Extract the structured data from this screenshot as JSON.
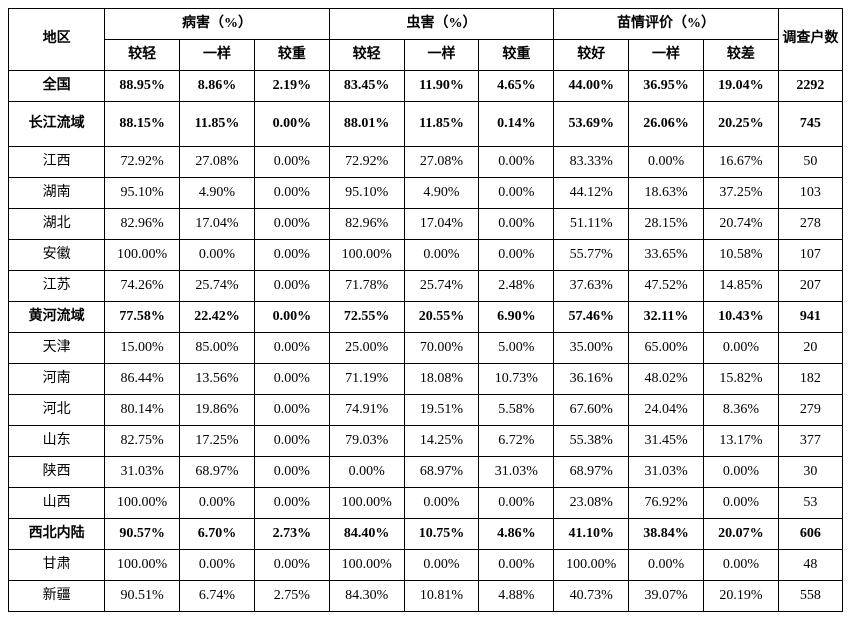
{
  "header": {
    "region": "地区",
    "group1": "病害（%）",
    "group2": "虫害（%）",
    "group3": "苗情评价（%）",
    "count": "调查户数",
    "sub": {
      "light": "较轻",
      "same": "一样",
      "heavy": "较重",
      "good": "较好",
      "bad": "较差"
    }
  },
  "rows": [
    {
      "bold": true,
      "tall": false,
      "region": "全国",
      "c": [
        "88.95%",
        "8.86%",
        "2.19%",
        "83.45%",
        "11.90%",
        "4.65%",
        "44.00%",
        "36.95%",
        "19.04%",
        "2292"
      ]
    },
    {
      "bold": true,
      "tall": true,
      "region": "长江流域",
      "c": [
        "88.15%",
        "11.85%",
        "0.00%",
        "88.01%",
        "11.85%",
        "0.14%",
        "53.69%",
        "26.06%",
        "20.25%",
        "745"
      ]
    },
    {
      "bold": false,
      "tall": false,
      "region": "江西",
      "c": [
        "72.92%",
        "27.08%",
        "0.00%",
        "72.92%",
        "27.08%",
        "0.00%",
        "83.33%",
        "0.00%",
        "16.67%",
        "50"
      ]
    },
    {
      "bold": false,
      "tall": false,
      "region": "湖南",
      "c": [
        "95.10%",
        "4.90%",
        "0.00%",
        "95.10%",
        "4.90%",
        "0.00%",
        "44.12%",
        "18.63%",
        "37.25%",
        "103"
      ]
    },
    {
      "bold": false,
      "tall": false,
      "region": "湖北",
      "c": [
        "82.96%",
        "17.04%",
        "0.00%",
        "82.96%",
        "17.04%",
        "0.00%",
        "51.11%",
        "28.15%",
        "20.74%",
        "278"
      ]
    },
    {
      "bold": false,
      "tall": false,
      "region": "安徽",
      "c": [
        "100.00%",
        "0.00%",
        "0.00%",
        "100.00%",
        "0.00%",
        "0.00%",
        "55.77%",
        "33.65%",
        "10.58%",
        "107"
      ]
    },
    {
      "bold": false,
      "tall": false,
      "region": "江苏",
      "c": [
        "74.26%",
        "25.74%",
        "0.00%",
        "71.78%",
        "25.74%",
        "2.48%",
        "37.63%",
        "47.52%",
        "14.85%",
        "207"
      ]
    },
    {
      "bold": true,
      "tall": false,
      "region": "黄河流域",
      "c": [
        "77.58%",
        "22.42%",
        "0.00%",
        "72.55%",
        "20.55%",
        "6.90%",
        "57.46%",
        "32.11%",
        "10.43%",
        "941"
      ]
    },
    {
      "bold": false,
      "tall": false,
      "region": "天津",
      "c": [
        "15.00%",
        "85.00%",
        "0.00%",
        "25.00%",
        "70.00%",
        "5.00%",
        "35.00%",
        "65.00%",
        "0.00%",
        "20"
      ]
    },
    {
      "bold": false,
      "tall": false,
      "region": "河南",
      "c": [
        "86.44%",
        "13.56%",
        "0.00%",
        "71.19%",
        "18.08%",
        "10.73%",
        "36.16%",
        "48.02%",
        "15.82%",
        "182"
      ]
    },
    {
      "bold": false,
      "tall": false,
      "region": "河北",
      "c": [
        "80.14%",
        "19.86%",
        "0.00%",
        "74.91%",
        "19.51%",
        "5.58%",
        "67.60%",
        "24.04%",
        "8.36%",
        "279"
      ]
    },
    {
      "bold": false,
      "tall": false,
      "region": "山东",
      "c": [
        "82.75%",
        "17.25%",
        "0.00%",
        "79.03%",
        "14.25%",
        "6.72%",
        "55.38%",
        "31.45%",
        "13.17%",
        "377"
      ]
    },
    {
      "bold": false,
      "tall": false,
      "region": "陕西",
      "c": [
        "31.03%",
        "68.97%",
        "0.00%",
        "0.00%",
        "68.97%",
        "31.03%",
        "68.97%",
        "31.03%",
        "0.00%",
        "30"
      ]
    },
    {
      "bold": false,
      "tall": false,
      "region": "山西",
      "c": [
        "100.00%",
        "0.00%",
        "0.00%",
        "100.00%",
        "0.00%",
        "0.00%",
        "23.08%",
        "76.92%",
        "0.00%",
        "53"
      ]
    },
    {
      "bold": true,
      "tall": false,
      "region": "西北内陆",
      "c": [
        "90.57%",
        "6.70%",
        "2.73%",
        "84.40%",
        "10.75%",
        "4.86%",
        "41.10%",
        "38.84%",
        "20.07%",
        "606"
      ]
    },
    {
      "bold": false,
      "tall": false,
      "region": "甘肃",
      "c": [
        "100.00%",
        "0.00%",
        "0.00%",
        "100.00%",
        "0.00%",
        "0.00%",
        "100.00%",
        "0.00%",
        "0.00%",
        "48"
      ]
    },
    {
      "bold": false,
      "tall": false,
      "region": "新疆",
      "c": [
        "90.51%",
        "6.74%",
        "2.75%",
        "84.30%",
        "10.81%",
        "4.88%",
        "40.73%",
        "39.07%",
        "20.19%",
        "558"
      ]
    }
  ]
}
